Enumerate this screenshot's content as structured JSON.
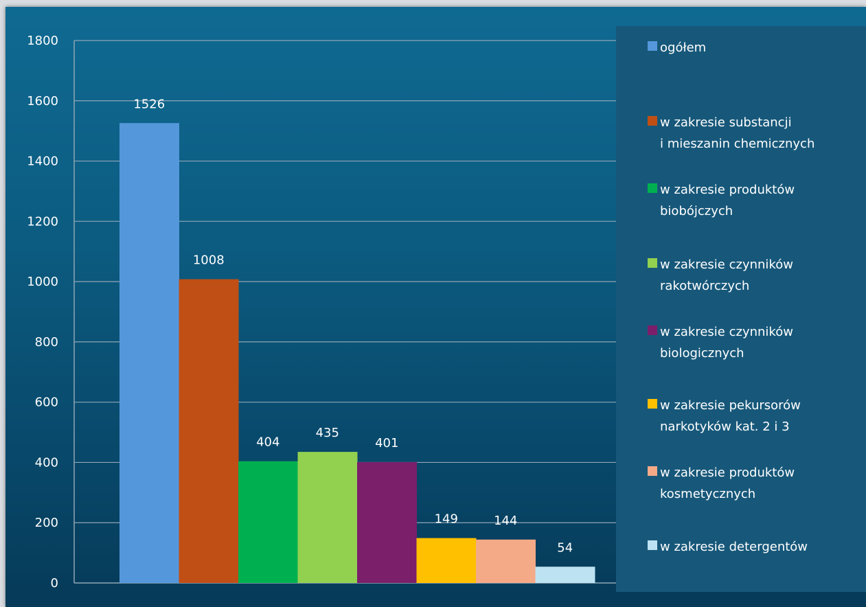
{
  "chart_data": {
    "type": "bar",
    "categories": [
      "ogółem",
      "w zakresie substancji\ni mieszanin chemicznych",
      "w zakresie produktów\nbiobójczych",
      "w zakresie czynników\nrakotwórczych",
      "w zakresie czynników\nbiologicznych",
      "w zakresie pekursorów\nnarkotyków kat. 2 i 3",
      "w zakresie produktów\nkosmetycznych",
      "w zakresie detergentów"
    ],
    "values": [
      1526,
      1008,
      404,
      435,
      401,
      149,
      144,
      54
    ],
    "data_labels": [
      "1526",
      "1008",
      "404",
      "435",
      "401",
      "149",
      "144",
      "54"
    ],
    "colors": [
      "#5597db",
      "#c04f15",
      "#00b050",
      "#92d050",
      "#7b1f6b",
      "#ffc000",
      "#f4a987",
      "#bde3f3"
    ],
    "ylim": [
      0,
      1800
    ],
    "yticks": [
      0,
      200,
      400,
      600,
      800,
      1000,
      1200,
      1400,
      1600,
      1800
    ],
    "ytick_labels": [
      "0",
      "200",
      "400",
      "600",
      "800",
      "1000",
      "1200",
      "1400",
      "1600",
      "1800"
    ],
    "grid": true,
    "legend_position": "right",
    "title": "",
    "xlabel": "",
    "ylabel": ""
  }
}
